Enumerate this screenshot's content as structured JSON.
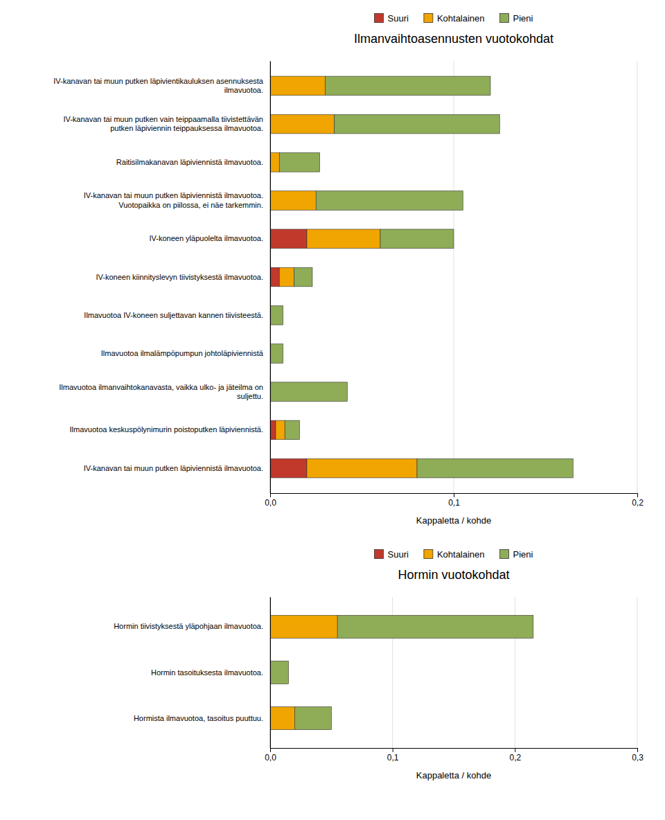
{
  "chart_data": [
    {
      "type": "bar",
      "orientation": "horizontal",
      "stacked": true,
      "grid": true,
      "legend": "top",
      "title": "Ilmanvaihtoasennusten vuotokohdat",
      "xlabel": "Kappaletta / kohde",
      "xlim": [
        0,
        0.2
      ],
      "xticks": [
        {
          "value": 0.0,
          "label": "0,0"
        },
        {
          "value": 0.1,
          "label": "0,1"
        },
        {
          "value": 0.2,
          "label": "0,2"
        }
      ],
      "categories": [
        "IV-kanavan tai muun putken läpivientikauluksen asennuksesta\nilmavuotoa.",
        "IV-kanavan tai muun putken vain teippaamalla tiivistettävän\nputken läpiviennin teippauksessa ilmavuotoa.",
        "Raitisilmakanavan läpiviennistä ilmavuotoa.",
        "IV-kanavan tai muun putken läpiviennistä ilmavuotoa.\nVuotopaikka on piilossa, ei näe tarkemmin.",
        "IV-koneen yläpuolelta ilmavuotoa.",
        "IV-koneen kiinnityslevyn tiivistyksestä ilmavuotoa.",
        "Ilmavuotoa IV-koneen suljettavan kannen tiivisteestä.",
        "Ilmavuotoa ilmalämpöpumpun johtoläpiviennistä",
        "Ilmavuotoa ilmanvaihtokanavasta, vaikka ulko- ja jäteilma on\nsuljettu.",
        "Ilmavuotoa keskuspölynimurin poistoputken läpiviennistä.",
        "IV-kanavan tai muun putken läpiviennistä ilmavuotoa."
      ],
      "series": [
        {
          "name": "Suuri",
          "color": "#c0392b",
          "values": [
            0.0,
            0.0,
            0.0,
            0.0,
            0.02,
            0.005,
            0.0,
            0.0,
            0.0,
            0.003,
            0.02
          ]
        },
        {
          "name": "Kohtalainen",
          "color": "#f0a500",
          "values": [
            0.03,
            0.035,
            0.005,
            0.025,
            0.04,
            0.008,
            0.0,
            0.0,
            0.0,
            0.005,
            0.06
          ]
        },
        {
          "name": "Pieni",
          "color": "#8fac57",
          "values": [
            0.09,
            0.09,
            0.022,
            0.08,
            0.04,
            0.01,
            0.007,
            0.007,
            0.042,
            0.008,
            0.085
          ]
        }
      ]
    },
    {
      "type": "bar",
      "orientation": "horizontal",
      "stacked": true,
      "grid": true,
      "legend": "top",
      "title": "Hormin vuotokohdat",
      "xlabel": "Kappaletta / kohde",
      "xlim": [
        0,
        0.3
      ],
      "xticks": [
        {
          "value": 0.0,
          "label": "0,0"
        },
        {
          "value": 0.1,
          "label": "0,1"
        },
        {
          "value": 0.2,
          "label": "0,2"
        },
        {
          "value": 0.3,
          "label": "0,3"
        }
      ],
      "categories": [
        "Hormin tiivistyksestä yläpohjaan ilmavuotoa.",
        "Hormin tasoituksesta ilmavuotoa.",
        "Hormista ilmavuotoa, tasoitus puuttuu."
      ],
      "series": [
        {
          "name": "Suuri",
          "color": "#c0392b",
          "values": [
            0.0,
            0.0,
            0.0
          ]
        },
        {
          "name": "Kohtalainen",
          "color": "#f0a500",
          "values": [
            0.055,
            0.0,
            0.02
          ]
        },
        {
          "name": "Pieni",
          "color": "#8fac57",
          "values": [
            0.16,
            0.015,
            0.03
          ]
        }
      ]
    }
  ]
}
